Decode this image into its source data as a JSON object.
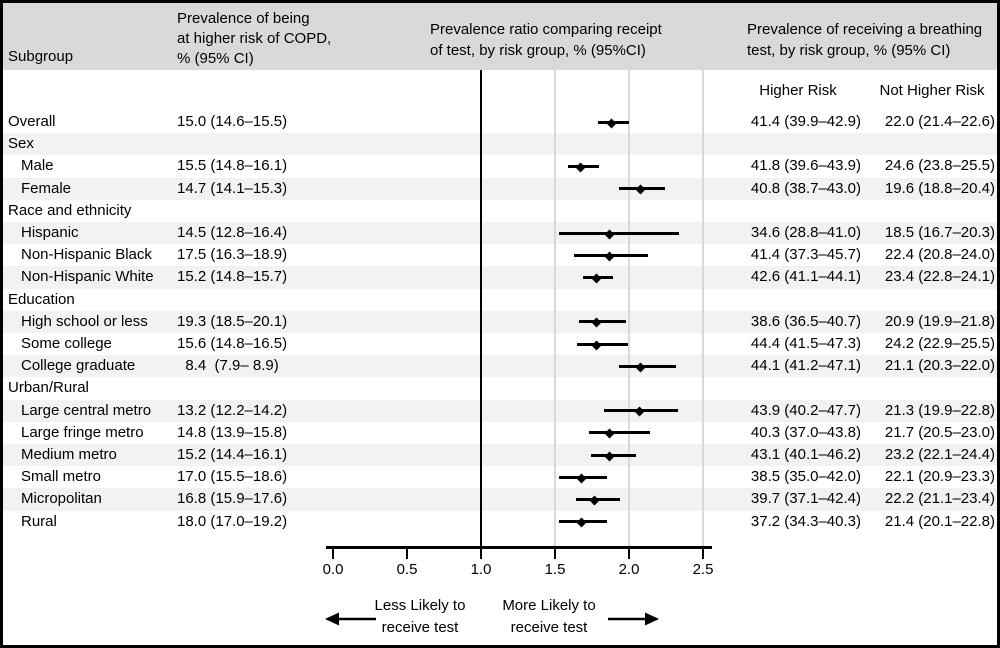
{
  "figure": {
    "headers": {
      "subgroup": "Subgroup",
      "copd_col_lines": [
        "Prevalence of being",
        "at higher risk of COPD,",
        "% (95% CI)"
      ],
      "ratio_col_lines": [
        "Prevalence ratio comparing receipt",
        "of test, by risk group, % (95%CI)"
      ],
      "breathing_col_lines": [
        "Prevalence of receiving a breathing",
        "test, by risk group, % (95% CI)"
      ],
      "higher_risk": "Higher Risk",
      "not_higher_risk": "Not Higher Risk"
    },
    "axis": {
      "tick_values": [
        0.0,
        0.5,
        1.0,
        1.5,
        2.0,
        2.5
      ],
      "tick_labels": [
        "0.0",
        "0.5",
        "1.0",
        "1.5",
        "2.0",
        "2.5"
      ]
    },
    "footer": {
      "less_line1": "Less Likely to",
      "less_line2": "receive test",
      "more_line1": "More Likely to",
      "more_line2": "receive test"
    },
    "colors": {
      "header_bg": "#d9d9d9",
      "row_stripe": "#f2f2f2",
      "gridline": "#d9d9d9",
      "reference_line": "#000000",
      "marker": "#000000",
      "text": "#000000"
    }
  },
  "table": {
    "rows": [
      {
        "label": "Overall",
        "indent": false,
        "copd": "15.0 (14.6–15.5)",
        "higher": "41.4 (39.9–42.9)",
        "not_higher": "22.0 (21.4–22.6)"
      },
      {
        "label": "Sex",
        "indent": false,
        "copd": "",
        "higher": "",
        "not_higher": ""
      },
      {
        "label": "Male",
        "indent": true,
        "copd": "15.5 (14.8–16.1)",
        "higher": "41.8 (39.6–43.9)",
        "not_higher": "24.6 (23.8–25.5)"
      },
      {
        "label": "Female",
        "indent": true,
        "copd": "14.7 (14.1–15.3)",
        "higher": "40.8 (38.7–43.0)",
        "not_higher": "19.6 (18.8–20.4)"
      },
      {
        "label": "Race and ethnicity",
        "indent": false,
        "copd": "",
        "higher": "",
        "not_higher": ""
      },
      {
        "label": "Hispanic",
        "indent": true,
        "copd": "14.5 (12.8–16.4)",
        "higher": "34.6 (28.8–41.0)",
        "not_higher": "18.5 (16.7–20.3)"
      },
      {
        "label": "Non-Hispanic Black",
        "indent": true,
        "copd": "17.5 (16.3–18.9)",
        "higher": "41.4 (37.3–45.7)",
        "not_higher": "22.4 (20.8–24.0)"
      },
      {
        "label": "Non-Hispanic White",
        "indent": true,
        "copd": "15.2 (14.8–15.7)",
        "higher": "42.6 (41.1–44.1)",
        "not_higher": "23.4 (22.8–24.1)"
      },
      {
        "label": "Education",
        "indent": false,
        "copd": "",
        "higher": "",
        "not_higher": ""
      },
      {
        "label": "High school or less",
        "indent": true,
        "copd": "19.3 (18.5–20.1)",
        "higher": "38.6 (36.5–40.7)",
        "not_higher": "20.9 (19.9–21.8)"
      },
      {
        "label": "Some college",
        "indent": true,
        "copd": "15.6 (14.8–16.5)",
        "higher": "44.4 (41.5–47.3)",
        "not_higher": "24.2 (22.9–25.5)"
      },
      {
        "label": "College graduate",
        "indent": true,
        "copd": "  8.4  (7.9– 8.9)",
        "higher": "44.1 (41.2–47.1)",
        "not_higher": "21.1 (20.3–22.0)"
      },
      {
        "label": "Urban/Rural",
        "indent": false,
        "copd": "",
        "higher": "",
        "not_higher": ""
      },
      {
        "label": "Large central metro",
        "indent": true,
        "copd": "13.2 (12.2–14.2)",
        "higher": "43.9 (40.2–47.7)",
        "not_higher": "21.3 (19.9–22.8)"
      },
      {
        "label": "Large fringe metro",
        "indent": true,
        "copd": "14.8 (13.9–15.8)",
        "higher": "40.3 (37.0–43.8)",
        "not_higher": "21.7 (20.5–23.0)"
      },
      {
        "label": "Medium metro",
        "indent": true,
        "copd": "15.2 (14.4–16.1)",
        "higher": "43.1 (40.1–46.2)",
        "not_higher": "23.2 (22.1–24.4)"
      },
      {
        "label": "Small metro",
        "indent": true,
        "copd": "17.0 (15.5–18.6)",
        "higher": "38.5 (35.0–42.0)",
        "not_higher": "22.1 (20.9–23.3)"
      },
      {
        "label": "Micropolitan",
        "indent": true,
        "copd": "16.8 (15.9–17.6)",
        "higher": "39.7 (37.1–42.4)",
        "not_higher": "22.2 (21.1–23.4)"
      },
      {
        "label": "Rural",
        "indent": true,
        "copd": "18.0 (17.0–19.2)",
        "higher": "37.2 (34.3–40.3)",
        "not_higher": "21.4 (20.1–22.8)"
      }
    ]
  },
  "chart_data": {
    "type": "scatter",
    "variant": "forest-plot",
    "title": "Prevalence ratio comparing receipt of test, by risk group, % (95%CI)",
    "xlim": [
      0,
      2.5
    ],
    "xticks": [
      0.0,
      0.5,
      1.0,
      1.5,
      2.0,
      2.5
    ],
    "reference_line": 1.0,
    "gridlines": [
      1.5,
      2.0,
      2.5
    ],
    "annotation_left": "Less Likely to receive test",
    "annotation_right": "More Likely to receive test",
    "categories": [
      "Overall",
      "Male",
      "Female",
      "Hispanic",
      "Non-Hispanic Black",
      "Non-Hispanic White",
      "High school or less",
      "Some college",
      "College graduate",
      "Large central metro",
      "Large fringe metro",
      "Medium metro",
      "Small metro",
      "Micropolitan",
      "Rural"
    ],
    "series": [
      {
        "name": "Prevalence ratio (95% CI)",
        "points": [
          {
            "category": "Overall",
            "estimate": 1.88,
            "ci_low": 1.79,
            "ci_high": 2.0
          },
          {
            "category": "Male",
            "estimate": 1.67,
            "ci_low": 1.59,
            "ci_high": 1.8
          },
          {
            "category": "Female",
            "estimate": 2.08,
            "ci_low": 1.93,
            "ci_high": 2.24
          },
          {
            "category": "Hispanic",
            "estimate": 1.87,
            "ci_low": 1.53,
            "ci_high": 2.34
          },
          {
            "category": "Non-Hispanic Black",
            "estimate": 1.87,
            "ci_low": 1.63,
            "ci_high": 2.13
          },
          {
            "category": "Non-Hispanic White",
            "estimate": 1.78,
            "ci_low": 1.69,
            "ci_high": 1.89
          },
          {
            "category": "High school or less",
            "estimate": 1.78,
            "ci_low": 1.66,
            "ci_high": 1.98
          },
          {
            "category": "Some college",
            "estimate": 1.78,
            "ci_low": 1.65,
            "ci_high": 1.99
          },
          {
            "category": "College graduate",
            "estimate": 2.08,
            "ci_low": 1.93,
            "ci_high": 2.32
          },
          {
            "category": "Large central metro",
            "estimate": 2.07,
            "ci_low": 1.83,
            "ci_high": 2.33
          },
          {
            "category": "Large fringe metro",
            "estimate": 1.87,
            "ci_low": 1.73,
            "ci_high": 2.14
          },
          {
            "category": "Medium metro",
            "estimate": 1.87,
            "ci_low": 1.74,
            "ci_high": 2.05
          },
          {
            "category": "Small metro",
            "estimate": 1.68,
            "ci_low": 1.53,
            "ci_high": 1.85
          },
          {
            "category": "Micropolitan",
            "estimate": 1.77,
            "ci_low": 1.64,
            "ci_high": 1.94
          },
          {
            "category": "Rural",
            "estimate": 1.68,
            "ci_low": 1.53,
            "ci_high": 1.85
          }
        ]
      }
    ]
  }
}
